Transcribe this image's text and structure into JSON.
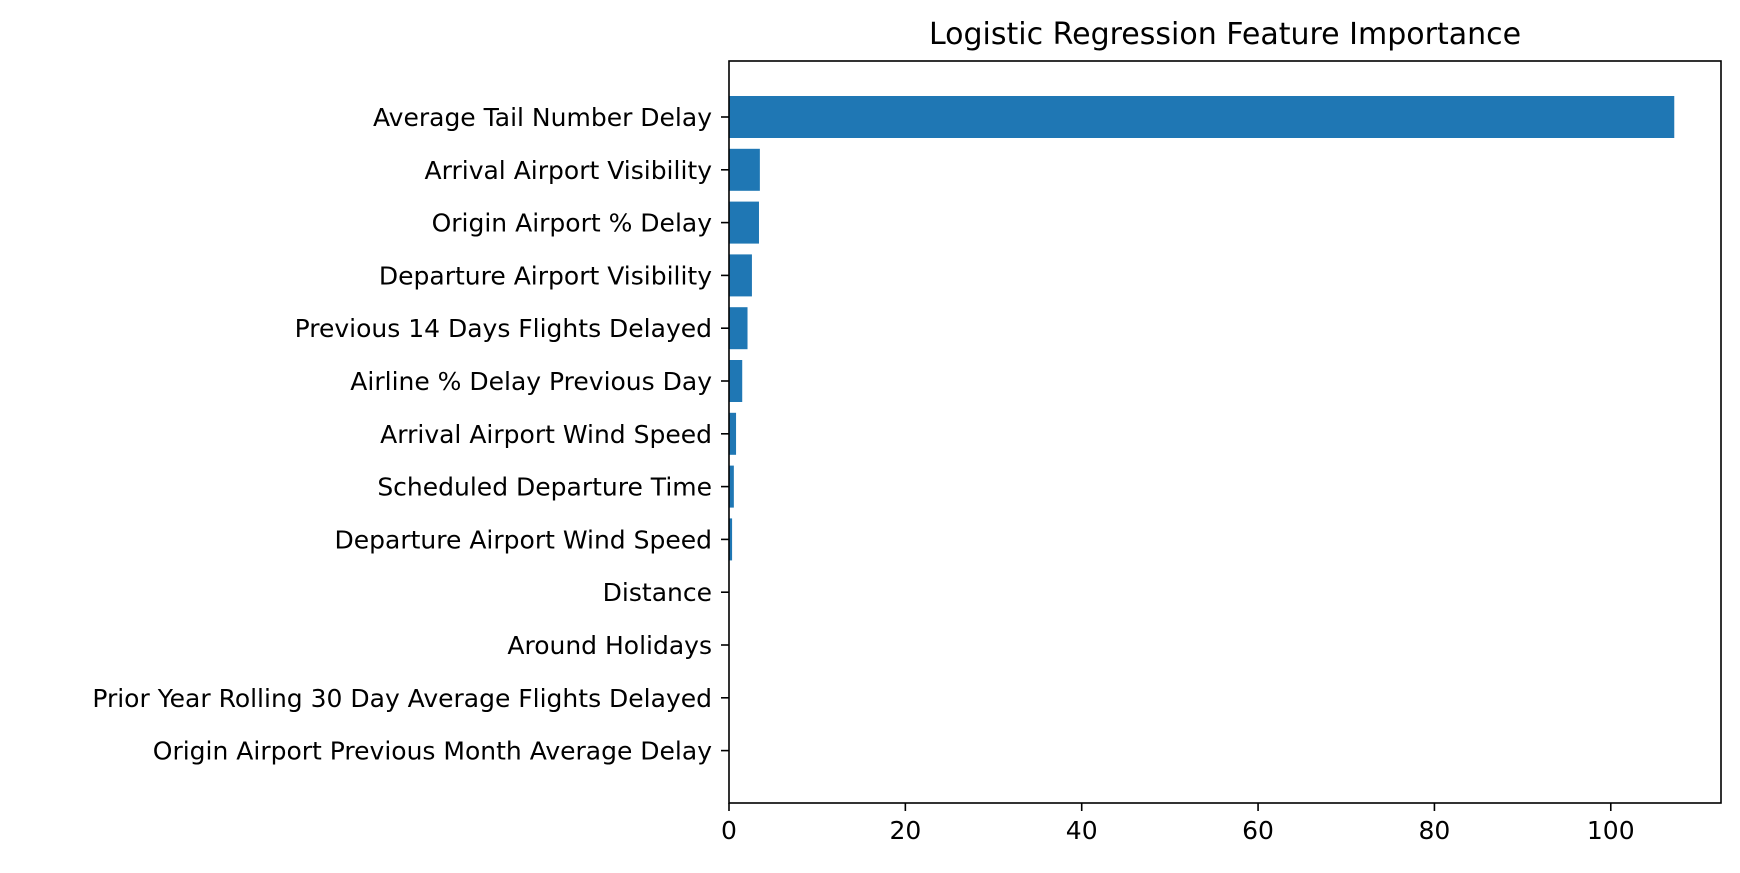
{
  "chart_data": {
    "type": "bar",
    "orientation": "horizontal",
    "title": "Logistic Regression Feature Importance",
    "xlabel": "",
    "ylabel": "",
    "xlim": [
      0,
      112.5
    ],
    "xticks": [
      0,
      20,
      40,
      60,
      80,
      100
    ],
    "xtick_labels": [
      "0",
      "20",
      "40",
      "60",
      "80",
      "100"
    ],
    "grid": false,
    "bar_color": "#1f77b4",
    "categories": [
      "Average Tail Number Delay",
      "Arrival Airport Visibility",
      "Origin Airport % Delay",
      "Departure Airport Visibility",
      "Previous 14 Days Flights Delayed",
      "Airline % Delay Previous Day",
      "Arrival Airport Wind Speed",
      "Scheduled Departure Time",
      "Departure Airport Wind Speed",
      "Distance",
      "Around Holidays",
      "Prior Year Rolling 30 Day Average Flights Delayed",
      "Origin Airport Previous Month Average Delay"
    ],
    "values": [
      107.2,
      3.5,
      3.4,
      2.6,
      2.1,
      1.5,
      0.8,
      0.55,
      0.35,
      0.05,
      0.03,
      0.02,
      0.01
    ]
  }
}
